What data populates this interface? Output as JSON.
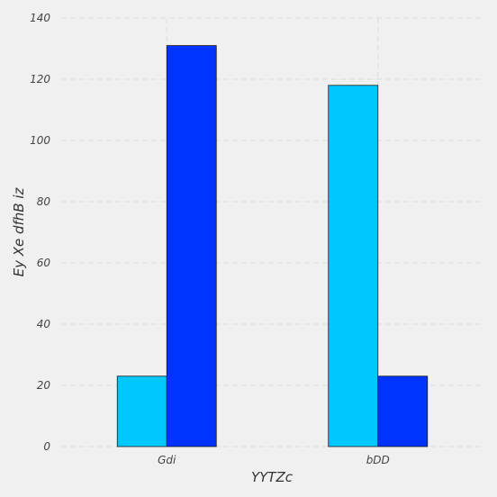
{
  "chart_data": {
    "type": "bar",
    "categories": [
      "Gdi",
      "bDD"
    ],
    "series": [
      {
        "values": [
          23,
          118
        ]
      },
      {
        "values": [
          131,
          23
        ]
      }
    ],
    "title": "",
    "xlabel": "YYTZc",
    "ylabel": "Ey Xe dfhB iz",
    "ylim": [
      0,
      140
    ],
    "yticks": [
      0,
      20,
      40,
      60,
      80,
      100,
      120,
      140
    ],
    "grid": true,
    "legend": "none"
  },
  "colors": {
    "background": "#f0f0f0",
    "grid": "#dcdcdc",
    "series": [
      "#00c8ff",
      "#0033ff"
    ],
    "edge": "#1a1a1a"
  }
}
